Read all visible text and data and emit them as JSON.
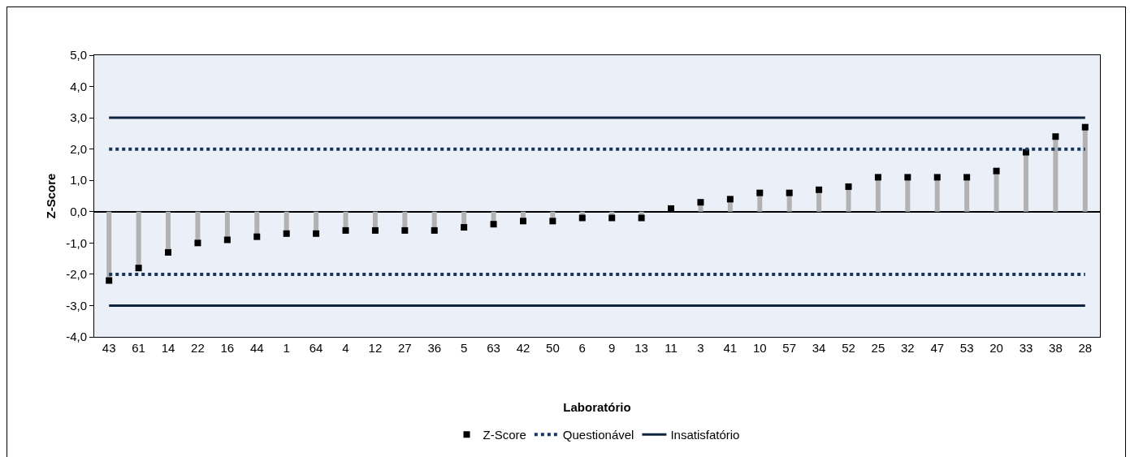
{
  "chart_data": {
    "type": "lollipop",
    "xlabel": "Laboratório",
    "ylabel": "Z-Score",
    "categories": [
      "43",
      "61",
      "14",
      "22",
      "16",
      "44",
      "1",
      "64",
      "4",
      "12",
      "27",
      "36",
      "5",
      "63",
      "42",
      "50",
      "6",
      "9",
      "13",
      "11",
      "3",
      "41",
      "10",
      "57",
      "34",
      "52",
      "25",
      "32",
      "47",
      "53",
      "20",
      "33",
      "38",
      "28"
    ],
    "series": [
      {
        "name": "Z-Score",
        "color": "#000000",
        "values": [
          -2.2,
          -1.8,
          -1.3,
          -1.0,
          -0.9,
          -0.8,
          -0.7,
          -0.7,
          -0.6,
          -0.6,
          -0.6,
          -0.6,
          -0.5,
          -0.4,
          -0.3,
          -0.3,
          -0.2,
          -0.2,
          -0.2,
          0.1,
          0.3,
          0.4,
          0.6,
          0.6,
          0.7,
          0.8,
          1.1,
          1.1,
          1.1,
          1.1,
          1.3,
          1.9,
          2.4,
          2.7
        ]
      }
    ],
    "ref_lines": [
      {
        "axis": "y",
        "value": 2,
        "label": "Questionável",
        "color": "#17375e",
        "line_style": "dotted"
      },
      {
        "axis": "y",
        "value": -2,
        "color": "#17375e",
        "line_style": "dotted"
      },
      {
        "axis": "y",
        "value": 3,
        "label": "Insatisfatório",
        "color": "#0f243e",
        "line_style": "solid"
      },
      {
        "axis": "y",
        "value": -3,
        "color": "#0f243e",
        "line_style": "solid"
      }
    ],
    "ylim": [
      -4,
      5
    ],
    "yticks": [
      {
        "value": -4,
        "label": "-4,0"
      },
      {
        "value": -3,
        "label": "-3,0"
      },
      {
        "value": -2,
        "label": "-2,0"
      },
      {
        "value": -1,
        "label": "-1,0"
      },
      {
        "value": 0,
        "label": "0,0"
      },
      {
        "value": 1,
        "label": "1,0"
      },
      {
        "value": 2,
        "label": "2,0"
      },
      {
        "value": 3,
        "label": "3,0"
      },
      {
        "value": 4,
        "label": "4,0"
      },
      {
        "value": 5,
        "label": "5,0"
      }
    ],
    "grid": false,
    "legend": "bottom"
  }
}
